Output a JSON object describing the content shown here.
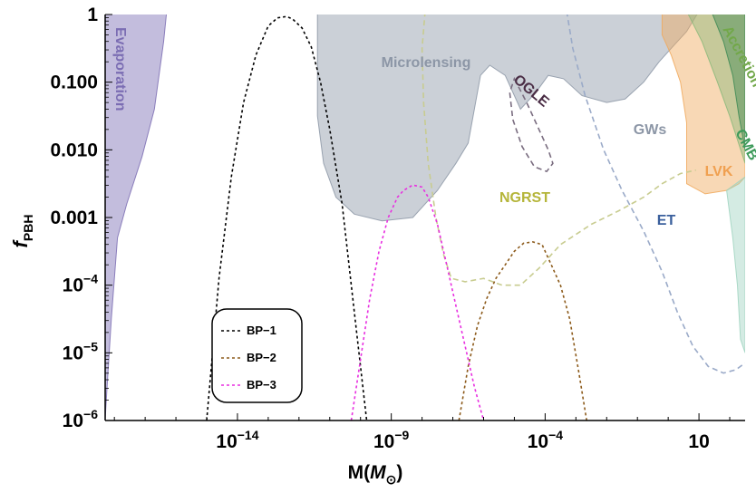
{
  "chart_data": {
    "type": "line",
    "xlabel": "M(M_⊙)",
    "ylabel": "f_PBH",
    "xscale": "log",
    "yscale": "log",
    "xlim_log10": [
      -18.3,
      2.5
    ],
    "ylim_log10": [
      -6,
      0
    ],
    "x_ticks": [
      {
        "log10": -14,
        "base": "10",
        "exp": "−14"
      },
      {
        "log10": -9,
        "base": "10",
        "exp": "−9"
      },
      {
        "log10": -4,
        "base": "10",
        "exp": "−4"
      },
      {
        "log10": 1,
        "base": "10",
        "exp": ""
      }
    ],
    "y_ticks": [
      {
        "log10": 0,
        "base": "1",
        "exp": ""
      },
      {
        "log10": -1,
        "base": "0.100",
        "exp": ""
      },
      {
        "log10": -2,
        "base": "0.010",
        "exp": ""
      },
      {
        "log10": -3,
        "base": "0.001",
        "exp": ""
      },
      {
        "log10": -4,
        "base": "10",
        "exp": "−4"
      },
      {
        "log10": -5,
        "base": "10",
        "exp": "−5"
      },
      {
        "log10": -6,
        "base": "10",
        "exp": "−6"
      }
    ],
    "regions": [
      {
        "name": "Evaporation",
        "color": "#7b6db3",
        "label_color": "#7b6db3",
        "points": [
          [
            -18.3,
            -6
          ],
          [
            -18.25,
            -5.6
          ],
          [
            -18.1,
            -4.5
          ],
          [
            -17.9,
            -3.3
          ],
          [
            -17.6,
            -2.8
          ],
          [
            -17.1,
            -2.1
          ],
          [
            -16.7,
            -1.4
          ],
          [
            -16.4,
            -0.4
          ],
          [
            -16.3,
            0.05
          ],
          [
            -18.3,
            0.05
          ]
        ]
      },
      {
        "name": "Microlensing",
        "color": "#8c96a6",
        "label_color": "#8c96a6",
        "points": [
          [
            -11.4,
            0.05
          ],
          [
            -11.4,
            -1.5
          ],
          [
            -11.2,
            -2.2
          ],
          [
            -10.8,
            -2.7
          ],
          [
            -10.2,
            -2.95
          ],
          [
            -9.3,
            -3.05
          ],
          [
            -8.3,
            -3.0
          ],
          [
            -7.5,
            -2.6
          ],
          [
            -6.9,
            -2.2
          ],
          [
            -6.5,
            -1.9
          ],
          [
            -6.1,
            -0.9
          ],
          [
            -5.8,
            -0.75
          ],
          [
            -5.3,
            -0.9
          ],
          [
            -4.8,
            -1.4
          ],
          [
            -4.3,
            -1.15
          ],
          [
            -3.9,
            -0.9
          ],
          [
            -3.4,
            -0.95
          ],
          [
            -2.8,
            -1.2
          ],
          [
            -2.0,
            -1.3
          ],
          [
            -1.4,
            -1.25
          ],
          [
            -0.8,
            -1.0
          ],
          [
            -0.3,
            -0.7
          ],
          [
            0.2,
            -0.45
          ],
          [
            0.6,
            -0.25
          ],
          [
            1.0,
            0.05
          ]
        ]
      },
      {
        "name": "LVK",
        "color": "#f0a85a",
        "label_color": "#f0a050",
        "points": [
          [
            -0.2,
            0.05
          ],
          [
            -0.2,
            -0.3
          ],
          [
            0.1,
            -0.6
          ],
          [
            0.4,
            -1.0
          ],
          [
            0.6,
            -1.6
          ],
          [
            0.6,
            -2.5
          ],
          [
            1.2,
            -2.65
          ],
          [
            1.9,
            -2.6
          ],
          [
            2.3,
            -2.5
          ],
          [
            2.5,
            -2.4
          ],
          [
            2.5,
            0.05
          ]
        ]
      },
      {
        "name": "Accretion",
        "color": "#8ab87a",
        "label_color": "#72a84a",
        "points": [
          [
            0.6,
            0.05
          ],
          [
            1.1,
            -0.4
          ],
          [
            1.6,
            -1.0
          ],
          [
            2.0,
            -1.5
          ],
          [
            2.5,
            -2.2
          ],
          [
            2.5,
            0.05
          ]
        ]
      },
      {
        "name": "CMB",
        "color": "#3d8a55",
        "label_color": "#3d9a5a",
        "points": [
          [
            1.4,
            0.05
          ],
          [
            1.8,
            -0.4
          ],
          [
            2.1,
            -0.9
          ],
          [
            2.3,
            -1.5
          ],
          [
            2.5,
            -2.0
          ],
          [
            2.5,
            0.05
          ]
        ]
      },
      {
        "name": "",
        "color": "#9fd3c0",
        "points": [
          [
            1.9,
            -2.6
          ],
          [
            2.1,
            -3.3
          ],
          [
            2.25,
            -4.0
          ],
          [
            2.35,
            -4.8
          ],
          [
            2.5,
            -5.0
          ],
          [
            2.5,
            -2.4
          ]
        ]
      }
    ],
    "regions_text_extra": [
      {
        "name": "OGLE",
        "color": "#4a2d45"
      },
      {
        "name": "NGRST",
        "color": "#b5b53a"
      },
      {
        "name": "GWs",
        "color": "#8c96a6"
      },
      {
        "name": "ET",
        "color": "#3a5f9c"
      }
    ],
    "dashed_curves": [
      {
        "name": "OGLE",
        "color": "#7a6d80",
        "closed": true,
        "points": [
          [
            -5.0,
            -0.95
          ],
          [
            -4.6,
            -1.3
          ],
          [
            -4.2,
            -1.7
          ],
          [
            -3.9,
            -2.0
          ],
          [
            -3.75,
            -2.2
          ],
          [
            -3.95,
            -2.32
          ],
          [
            -4.35,
            -2.25
          ],
          [
            -4.75,
            -1.95
          ],
          [
            -5.05,
            -1.55
          ],
          [
            -5.15,
            -1.15
          ],
          [
            -5.0,
            -0.95
          ]
        ]
      },
      {
        "name": "NGRST",
        "color": "#c8cc90",
        "closed": false,
        "points": [
          [
            -7.9,
            0.05
          ],
          [
            -8.0,
            -0.5
          ],
          [
            -7.95,
            -1.3
          ],
          [
            -7.8,
            -2.2
          ],
          [
            -7.55,
            -3.0
          ],
          [
            -7.3,
            -3.55
          ],
          [
            -7.05,
            -3.9
          ],
          [
            -6.6,
            -3.95
          ],
          [
            -6.0,
            -3.9
          ],
          [
            -5.4,
            -4.0
          ],
          [
            -4.8,
            -4.0
          ],
          [
            -4.2,
            -3.75
          ],
          [
            -3.5,
            -3.4
          ],
          [
            -2.5,
            -3.1
          ],
          [
            -1.6,
            -2.9
          ],
          [
            -0.8,
            -2.7
          ],
          [
            -0.2,
            -2.5
          ],
          [
            0.4,
            -2.35
          ],
          [
            0.9,
            -2.3
          ]
        ]
      },
      {
        "name": "ET",
        "color": "#9aaac8",
        "closed": false,
        "points": [
          [
            -3.3,
            0.05
          ],
          [
            -3.1,
            -0.5
          ],
          [
            -2.7,
            -1.2
          ],
          [
            -2.1,
            -2.0
          ],
          [
            -1.5,
            -2.6
          ],
          [
            -0.8,
            -3.2
          ],
          [
            -0.2,
            -3.8
          ],
          [
            0.3,
            -4.4
          ],
          [
            0.8,
            -4.9
          ],
          [
            1.3,
            -5.2
          ],
          [
            1.8,
            -5.3
          ],
          [
            2.2,
            -5.25
          ],
          [
            2.5,
            -5.15
          ]
        ]
      }
    ],
    "series": [
      {
        "name": "BP−1",
        "color": "#000000",
        "x": [
          -15.0,
          -14.6,
          -14.2,
          -13.8,
          -13.4,
          -13.0,
          -12.7,
          -12.4,
          -12.2,
          -11.9,
          -11.6,
          -11.3,
          -11.0,
          -10.6,
          -10.2,
          -9.8
        ],
        "y": [
          -6.0,
          -3.9,
          -2.4,
          -1.3,
          -0.6,
          -0.17,
          -0.05,
          -0.03,
          -0.07,
          -0.2,
          -0.48,
          -1.0,
          -1.7,
          -2.8,
          -4.4,
          -6.0
        ]
      },
      {
        "name": "BP−2",
        "color": "#8c5a1a",
        "x": [
          -6.8,
          -6.5,
          -6.2,
          -5.9,
          -5.6,
          -5.3,
          -5.0,
          -4.7,
          -4.4,
          -4.1,
          -3.8,
          -3.5,
          -3.2,
          -2.9,
          -2.65
        ],
        "y": [
          -6.0,
          -5.2,
          -4.6,
          -4.2,
          -3.9,
          -3.7,
          -3.5,
          -3.38,
          -3.36,
          -3.4,
          -3.7,
          -4.0,
          -4.5,
          -5.3,
          -6.0
        ]
      },
      {
        "name": "BP−3",
        "color": "#e82fe0",
        "x": [
          -10.3,
          -10.0,
          -9.7,
          -9.4,
          -9.1,
          -8.8,
          -8.6,
          -8.3,
          -8.0,
          -7.8,
          -7.5,
          -7.2,
          -6.9,
          -6.6,
          -6.3,
          -6.0
        ],
        "y": [
          -6.0,
          -5.1,
          -4.2,
          -3.5,
          -3.0,
          -2.7,
          -2.6,
          -2.52,
          -2.55,
          -2.7,
          -3.1,
          -3.7,
          -4.3,
          -4.9,
          -5.5,
          -6.0
        ]
      }
    ]
  }
}
